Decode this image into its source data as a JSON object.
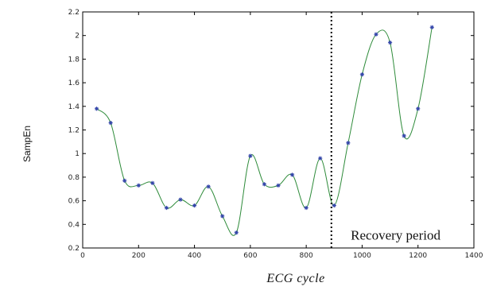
{
  "chart_data": {
    "type": "line",
    "xlabel": "ECG cycle",
    "ylabel": "SampEn",
    "xlim": [
      0,
      1400
    ],
    "ylim": [
      0.2,
      2.2
    ],
    "x_ticks": [
      0,
      200,
      400,
      600,
      800,
      1000,
      1200,
      1400
    ],
    "y_ticks": [
      0.2,
      0.4,
      0.6,
      0.8,
      1,
      1.2,
      1.4,
      1.6,
      1.8,
      2,
      2.2
    ],
    "grid": false,
    "series": [
      {
        "color": "#2e8b3a",
        "marker_color": "#3344aa",
        "x": [
          50,
          100,
          150,
          200,
          250,
          300,
          350,
          400,
          450,
          500,
          550,
          600,
          650,
          700,
          750,
          800,
          850,
          900,
          950,
          1000,
          1050,
          1100,
          1150,
          1200,
          1250
        ],
        "y": [
          1.38,
          1.26,
          0.77,
          0.73,
          0.75,
          0.54,
          0.61,
          0.56,
          0.72,
          0.47,
          0.33,
          0.98,
          0.74,
          0.73,
          0.82,
          0.54,
          0.96,
          0.56,
          1.09,
          1.67,
          2.01,
          1.94,
          1.15,
          1.38,
          2.07
        ]
      }
    ],
    "annotations": [
      {
        "type": "vline",
        "x": 890,
        "style": "dotted"
      },
      {
        "type": "text",
        "text": "Recovery period",
        "x": 1120,
        "y": 0.27
      }
    ]
  }
}
